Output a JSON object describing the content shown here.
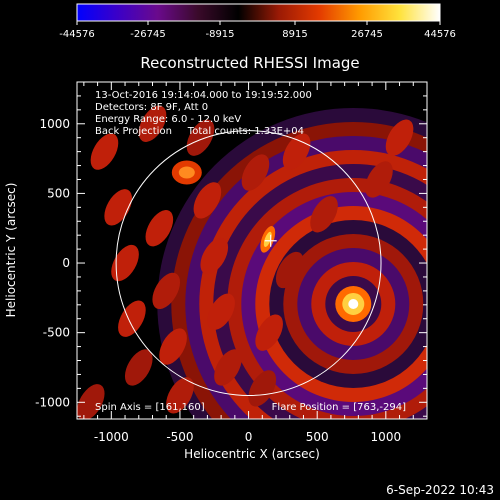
{
  "colorbar": {
    "tick_labels": [
      "-44576",
      "-26745",
      "-8915",
      "8915",
      "26745",
      "44576"
    ],
    "min": -44576,
    "max": 44576,
    "colors": [
      "#0000ff",
      "#3b00c8",
      "#6a0a8c",
      "#3a0a2a",
      "#000000",
      "#9a1a05",
      "#e33a00",
      "#ff9a00",
      "#ffe23c",
      "#ffffff"
    ]
  },
  "plot": {
    "title": "Reconstructed RHESSI Image",
    "info_lines": [
      "13-Oct-2016 19:14:04.000 to 19:19:52.000",
      "Detectors: 8F 9F, Att 0",
      "Energy Range: 6.0 - 12.0 keV",
      "Back Projection     Total counts: 1.33E+04"
    ],
    "spin_axis": "Spin Axis = [161,160]",
    "flare_position": "Flare Position = [763,-294]",
    "xlabel": "Heliocentric X (arcsec)",
    "ylabel": "Heliocentric Y (arcsec)",
    "x_ticks": [
      "-1000",
      "-500",
      "0",
      "500",
      "1000"
    ],
    "y_ticks": [
      "1000",
      "500",
      "0",
      "-500",
      "-1000"
    ],
    "x_range": [
      -1250,
      1300
    ],
    "y_range": [
      -1120,
      1300
    ],
    "solar_disk_radius_arcsec": 965,
    "flare_xy": [
      763,
      -294
    ],
    "source2_xy": [
      140,
      170
    ],
    "blob_xy": [
      -450,
      650
    ],
    "palette": [
      "#1a0026",
      "#4a0a6a",
      "#2a0a3a",
      "#000000",
      "#6a0a02",
      "#c0200a",
      "#ff6a00",
      "#ffd040",
      "#ffffff"
    ],
    "cross_xy": [
      161,
      160
    ]
  },
  "footer": {
    "timestamp": "6-Sep-2022 10:43"
  }
}
